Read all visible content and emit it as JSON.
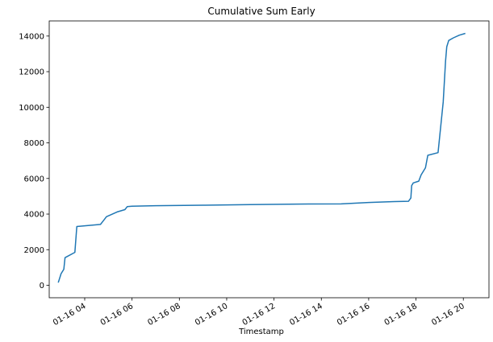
{
  "chart_data": {
    "type": "line",
    "title": "Cumulative Sum Early",
    "xlabel": "Timestamp",
    "ylabel": "",
    "x_tick_labels": [
      "01-16 04",
      "01-16 06",
      "01-16 08",
      "01-16 10",
      "01-16 12",
      "01-16 14",
      "01-16 16",
      "01-16 18",
      "01-16 20"
    ],
    "y_tick_labels": [
      "0",
      "2000",
      "4000",
      "6000",
      "8000",
      "10000",
      "12000",
      "14000"
    ],
    "xlim": [
      "2021-01-16 02:30",
      "2021-01-16 21:05"
    ],
    "ylim": [
      -700,
      14850
    ],
    "grid": false,
    "legend": "none",
    "line_color": "#1f77b4",
    "series": [
      {
        "x": [
          "2021-01-16 02:53",
          "2021-01-16 03:00",
          "2021-01-16 03:07",
          "2021-01-16 03:10",
          "2021-01-16 03:35",
          "2021-01-16 03:40",
          "2021-01-16 04:40",
          "2021-01-16 04:48",
          "2021-01-16 04:55",
          "2021-01-16 05:22",
          "2021-01-16 05:42",
          "2021-01-16 05:48",
          "2021-01-16 06:00",
          "2021-01-16 07:00",
          "2021-01-16 09:00",
          "2021-01-16 11:00",
          "2021-01-16 13:00",
          "2021-01-16 14:50",
          "2021-01-16 16:00",
          "2021-01-16 17:05",
          "2021-01-16 17:41",
          "2021-01-16 17:47",
          "2021-01-16 17:49",
          "2021-01-16 17:53",
          "2021-01-16 18:07",
          "2021-01-16 18:13",
          "2021-01-16 18:24",
          "2021-01-16 18:30",
          "2021-01-16 18:56",
          "2021-01-16 19:09",
          "2021-01-16 19:15",
          "2021-01-16 19:18",
          "2021-01-16 19:23",
          "2021-01-16 19:35",
          "2021-01-16 19:50",
          "2021-01-16 20:05"
        ],
        "y": [
          150,
          650,
          900,
          1550,
          1850,
          3300,
          3420,
          3650,
          3850,
          4120,
          4250,
          4420,
          4440,
          4470,
          4500,
          4530,
          4560,
          4570,
          4650,
          4700,
          4720,
          4900,
          5600,
          5750,
          5850,
          6200,
          6600,
          7300,
          7450,
          10300,
          12600,
          13400,
          13750,
          13900,
          14050,
          14150
        ]
      }
    ]
  }
}
